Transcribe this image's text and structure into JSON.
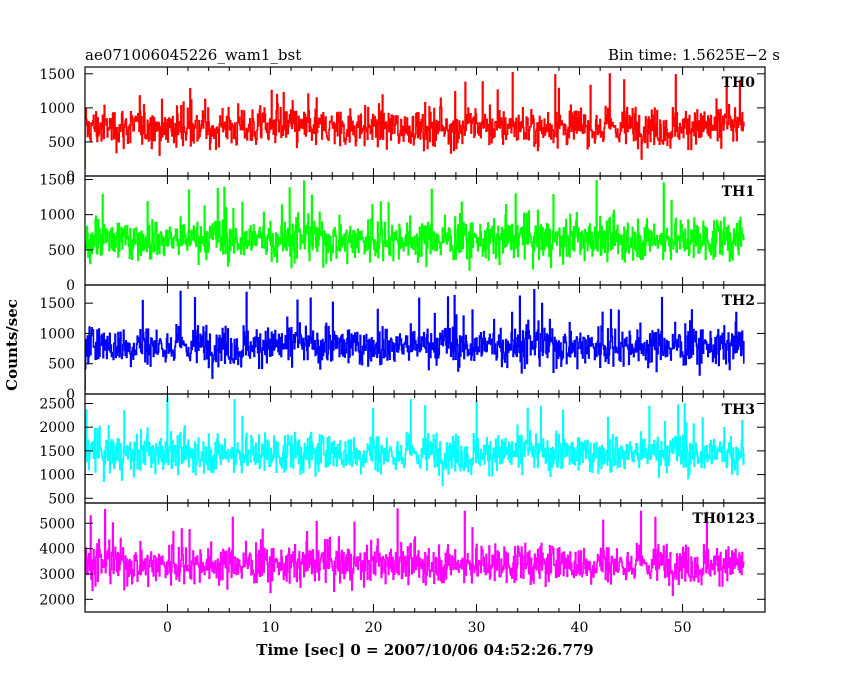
{
  "header": {
    "title_left": "ae071006045226_wam1_bst",
    "title_right": "Bin time: 1.5625E−2 s"
  },
  "chart_data": {
    "type": "line",
    "xlabel": "Time [sec] 0 = 2007/10/06 04:52:26.779",
    "ylabel": "Counts/sec",
    "xlim": [
      -8,
      58
    ],
    "x_start": -8,
    "x_end": 56,
    "x_ticks": [
      0,
      10,
      20,
      30,
      40,
      50
    ],
    "x_tick_labels": [
      "0",
      "10",
      "20",
      "30",
      "40",
      "50"
    ],
    "panels": [
      {
        "name": "TH0",
        "color": "#ff0000",
        "ylim": [
          0,
          1600
        ],
        "y_ticks": [
          0,
          500,
          1000,
          1500
        ],
        "y_tick_labels": [
          "0",
          "500",
          "1000",
          "1500"
        ],
        "mean": 720,
        "min": 100,
        "max": 1550
      },
      {
        "name": "TH1",
        "color": "#00ff00",
        "ylim": [
          0,
          1550
        ],
        "y_ticks": [
          0,
          500,
          1000,
          1500
        ],
        "y_tick_labels": [
          "0",
          "500",
          "1000",
          "1500"
        ],
        "mean": 650,
        "min": 80,
        "max": 1500
      },
      {
        "name": "TH2",
        "color": "#0000ff",
        "ylim": [
          0,
          1800
        ],
        "y_ticks": [
          0,
          500,
          1000,
          1500
        ],
        "y_tick_labels": [
          "0",
          "500",
          "1000",
          "1500"
        ],
        "mean": 800,
        "min": 50,
        "max": 1750
      },
      {
        "name": "TH3",
        "color": "#00ffff",
        "ylim": [
          400,
          2700
        ],
        "y_ticks": [
          500,
          1000,
          1500,
          2000,
          2500
        ],
        "y_tick_labels": [
          "500",
          "1000",
          "1500",
          "2000",
          "2500"
        ],
        "mean": 1450,
        "min": 500,
        "max": 2650
      },
      {
        "name": "TH0123",
        "color": "#ff00ff",
        "ylim": [
          1500,
          5800
        ],
        "y_ticks": [
          2000,
          3000,
          4000,
          5000
        ],
        "y_tick_labels": [
          "2000",
          "3000",
          "4000",
          "5000"
        ],
        "mean": 3400,
        "min": 1750,
        "max": 5600
      }
    ]
  }
}
